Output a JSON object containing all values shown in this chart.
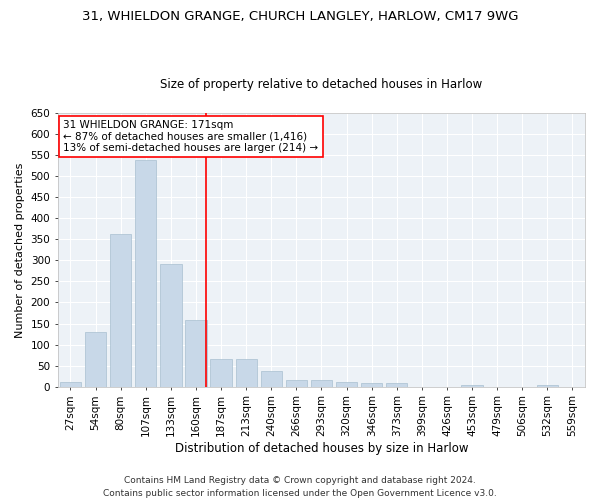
{
  "title1": "31, WHIELDON GRANGE, CHURCH LANGLEY, HARLOW, CM17 9WG",
  "title2": "Size of property relative to detached houses in Harlow",
  "xlabel": "Distribution of detached houses by size in Harlow",
  "ylabel": "Number of detached properties",
  "bar_color": "#c8d8e8",
  "bar_edgecolor": "#a8c0d0",
  "categories": [
    "27sqm",
    "54sqm",
    "80sqm",
    "107sqm",
    "133sqm",
    "160sqm",
    "187sqm",
    "213sqm",
    "240sqm",
    "266sqm",
    "293sqm",
    "320sqm",
    "346sqm",
    "373sqm",
    "399sqm",
    "426sqm",
    "453sqm",
    "479sqm",
    "506sqm",
    "532sqm",
    "559sqm"
  ],
  "values": [
    10,
    130,
    362,
    538,
    292,
    158,
    65,
    65,
    38,
    16,
    16,
    12,
    8,
    8,
    0,
    0,
    4,
    0,
    0,
    4,
    0
  ],
  "ylim": [
    0,
    650
  ],
  "yticks": [
    0,
    50,
    100,
    150,
    200,
    250,
    300,
    350,
    400,
    450,
    500,
    550,
    600,
    650
  ],
  "vline_color": "red",
  "annotation_line1": "31 WHIELDON GRANGE: 171sqm",
  "annotation_line2": "← 87% of detached houses are smaller (1,416)",
  "annotation_line3": "13% of semi-detached houses are larger (214) →",
  "annotation_box_color": "#ffffff",
  "annotation_border_color": "red",
  "footer1": "Contains HM Land Registry data © Crown copyright and database right 2024.",
  "footer2": "Contains public sector information licensed under the Open Government Licence v3.0.",
  "background_color": "#edf2f7",
  "grid_color": "#ffffff",
  "title1_fontsize": 9.5,
  "title2_fontsize": 8.5,
  "axis_label_fontsize": 8,
  "tick_fontsize": 7.5,
  "annotation_fontsize": 7.5,
  "footer_fontsize": 6.5
}
